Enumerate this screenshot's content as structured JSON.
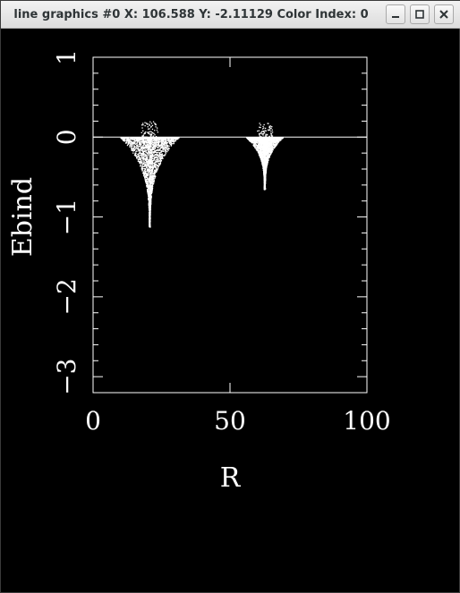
{
  "window": {
    "title": "line graphics #0 X: 106.588 Y: -2.11129 Color Index: 0",
    "buttons": {
      "minimize_icon": "minimize-icon",
      "maximize_icon": "maximize-icon",
      "close_icon": "close-icon"
    }
  },
  "colors": {
    "background": "#000000",
    "foreground": "#ffffff",
    "titlebar": "#e6e6e6"
  },
  "chart_data": {
    "type": "scatter",
    "title": "",
    "xlabel": "R",
    "ylabel": "Ebind",
    "xlim": [
      0,
      100
    ],
    "ylim": [
      -3.2,
      1.0
    ],
    "x_ticks": [
      "0",
      "50",
      "100"
    ],
    "y_ticks": [
      "1",
      "0",
      "−1",
      "−2",
      "−3"
    ],
    "reference_line_y": 0,
    "grid": false,
    "legend": "none",
    "clusters": [
      {
        "x_range": [
          10,
          31
        ],
        "x_tip": 20.5,
        "y_min": -1.12,
        "y_max": 0.2
      },
      {
        "x_range": [
          56,
          69
        ],
        "x_tip": 62.5,
        "y_min": -0.65,
        "y_max": 0.18
      }
    ]
  }
}
